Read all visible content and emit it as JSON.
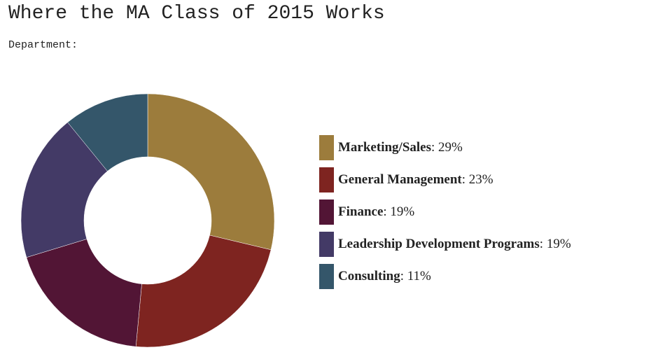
{
  "chart_data": {
    "type": "pie",
    "title": "Where the MA Class of 2015 Works",
    "subtitle": "Department:",
    "categories": [
      "Marketing/Sales",
      "General Management",
      "Finance",
      "Leadership Development Programs",
      "Consulting"
    ],
    "values": [
      29,
      23,
      19,
      19,
      11
    ],
    "value_labels": [
      ": 29%",
      ": 23%",
      ": 19%",
      ": 19%",
      ": 11%"
    ],
    "colors": [
      "#9c7c3c",
      "#7e2420",
      "#521535",
      "#433a66",
      "#34566a"
    ],
    "donut": true
  }
}
